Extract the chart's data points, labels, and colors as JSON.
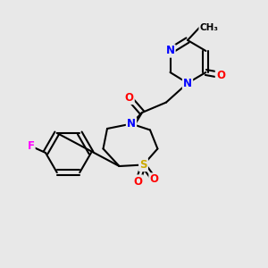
{
  "bg_color": "#e8e8e8",
  "bond_color": "#000000",
  "bond_width": 1.5,
  "atom_colors": {
    "N": "#0000ff",
    "O": "#ff0000",
    "F": "#ff00ff",
    "S": "#ccaa00",
    "C": "#000000"
  },
  "font_size": 8.5
}
